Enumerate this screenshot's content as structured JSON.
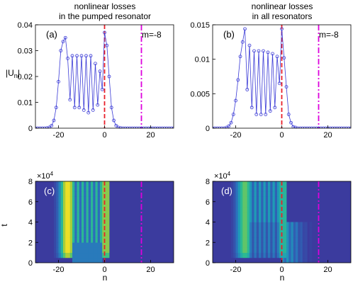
{
  "chart_data": [
    {
      "panel": "(a)",
      "type": "line",
      "title": [
        "nonlinear losses",
        "in the pumped resonator"
      ],
      "ylabel": "|U_n|",
      "annotation": "m=-8",
      "xlim": [
        -30,
        30
      ],
      "ylim": [
        0,
        0.04
      ],
      "xticks": [
        -20,
        0,
        20
      ],
      "yticks": [
        0,
        0.01,
        0.02,
        0.03,
        0.04
      ],
      "ytick_labels": [
        "0",
        "0.01",
        "0.02",
        "0.03",
        "0.04"
      ],
      "vlines": [
        {
          "x": 0,
          "style": "dashed",
          "color": "#e8202a"
        },
        {
          "x": 16,
          "style": "dashdot",
          "color": "#dd00dd"
        }
      ],
      "series": [
        {
          "color": "#3b3bd6",
          "x": [
            -30,
            -29,
            -28,
            -27,
            -26,
            -25,
            -24,
            -23,
            -22,
            -21,
            -20,
            -19,
            -18,
            -17,
            -16,
            -15,
            -14,
            -13,
            -12,
            -11,
            -10,
            -9,
            -8,
            -7,
            -6,
            -5,
            -4,
            -3,
            -2,
            -1,
            0,
            1,
            2,
            3,
            4,
            5,
            6,
            7,
            8,
            9,
            10,
            11,
            12,
            13,
            14,
            15,
            16,
            17,
            18,
            19,
            20,
            21,
            22,
            23,
            24,
            25,
            26,
            27,
            28,
            29,
            30
          ],
          "y": [
            0,
            0,
            0,
            0,
            0,
            0.0001,
            0.0003,
            0.001,
            0.003,
            0.008,
            0.018,
            0.03,
            0.0335,
            0.035,
            0.027,
            0.011,
            0.028,
            0.008,
            0.028,
            0.008,
            0.028,
            0.007,
            0.028,
            0.006,
            0.028,
            0.007,
            0.025,
            0.009,
            0.022,
            0.015,
            0.037,
            0.032,
            0.02,
            0.008,
            0.003,
            0.001,
            0.0003,
            0.0001,
            0,
            0,
            0,
            0,
            0,
            0,
            0,
            0,
            0,
            0,
            0,
            0,
            0,
            0,
            0,
            0,
            0,
            0,
            0,
            0,
            0,
            0,
            0
          ]
        }
      ]
    },
    {
      "panel": "(b)",
      "type": "line",
      "title": [
        "nonlinear losses",
        "in all resonators"
      ],
      "annotation": "m=-8",
      "xlim": [
        -30,
        30
      ],
      "ylim": [
        0,
        0.015
      ],
      "xticks": [
        -20,
        0,
        20
      ],
      "yticks": [
        0,
        0.005,
        0.01,
        0.015
      ],
      "ytick_labels": [
        "0",
        "0.005",
        "0.01",
        "0.015"
      ],
      "vlines": [
        {
          "x": 0,
          "style": "dashed",
          "color": "#e8202a"
        },
        {
          "x": 16,
          "style": "dashdot",
          "color": "#dd00dd"
        }
      ],
      "series": [
        {
          "color": "#3b3bd6",
          "x": [
            -30,
            -29,
            -28,
            -27,
            -26,
            -25,
            -24,
            -23,
            -22,
            -21,
            -20,
            -19,
            -18,
            -17,
            -16,
            -15,
            -14,
            -13,
            -12,
            -11,
            -10,
            -9,
            -8,
            -7,
            -6,
            -5,
            -4,
            -3,
            -2,
            -1,
            0,
            1,
            2,
            3,
            4,
            5,
            6,
            7,
            8,
            9,
            10,
            11,
            12,
            13,
            14,
            15,
            16,
            17,
            18,
            19,
            20,
            21,
            22,
            23,
            24,
            25,
            26,
            27,
            28,
            29,
            30
          ],
          "y": [
            0,
            0,
            0,
            0,
            0,
            0,
            0.0001,
            0.0003,
            0.0008,
            0.002,
            0.004,
            0.007,
            0.0104,
            0.0125,
            0.0144,
            0.0056,
            0.012,
            0.003,
            0.0112,
            0.002,
            0.0112,
            0.002,
            0.0112,
            0.002,
            0.011,
            0.0025,
            0.0108,
            0.003,
            0.0104,
            0.0065,
            0.0144,
            0.0102,
            0.006,
            0.002,
            0.0008,
            0.0002,
            0.0001,
            0,
            0,
            0,
            0,
            0,
            0,
            0,
            0,
            0,
            0,
            0,
            0,
            0,
            0,
            0,
            0,
            0,
            0,
            0,
            0,
            0,
            0,
            0,
            0
          ]
        }
      ]
    },
    {
      "panel": "(c)",
      "type": "heatmap",
      "xlabel": "n",
      "ylabel": "t",
      "exponent_label": "×10",
      "exponent": "4",
      "xlim": [
        -30,
        30
      ],
      "ylim": [
        0,
        8
      ],
      "xticks": [
        -20,
        0,
        20
      ],
      "yticks": [
        0,
        2,
        4,
        6,
        8
      ],
      "colormap": [
        "#3b3b9e",
        "#2c6fbc",
        "#1e9fb6",
        "#2fbf8a",
        "#a6cd3a",
        "#f5e224"
      ],
      "vlines": [
        {
          "x": 0,
          "style": "dashed",
          "color": "#e8202a"
        },
        {
          "x": 16,
          "style": "dashdot",
          "color": "#dd00dd"
        }
      ]
    },
    {
      "panel": "(d)",
      "type": "heatmap",
      "xlabel": "n",
      "exponent_label": "×10",
      "exponent": "4",
      "xlim": [
        -30,
        30
      ],
      "ylim": [
        0,
        8
      ],
      "xticks": [
        -20,
        0,
        20
      ],
      "yticks": [
        0,
        2,
        4,
        6,
        8
      ],
      "colormap": [
        "#3b3b9e",
        "#2c6fbc",
        "#1e9fb6",
        "#2fbf8a",
        "#a6cd3a",
        "#f5e224"
      ],
      "vlines": [
        {
          "x": 0,
          "style": "dashed",
          "color": "#e8202a"
        },
        {
          "x": 16,
          "style": "dashdot",
          "color": "#dd00dd"
        }
      ]
    }
  ]
}
